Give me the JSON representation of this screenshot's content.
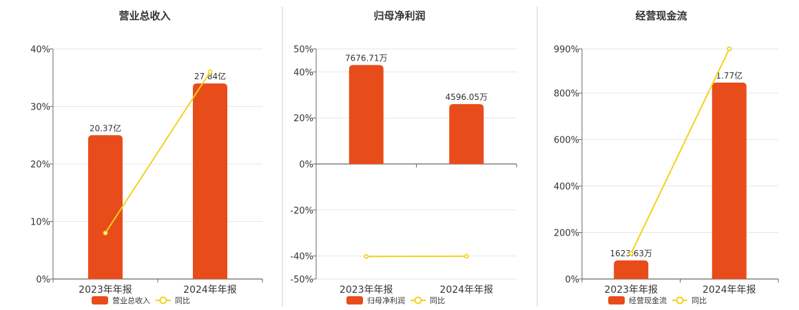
{
  "colors": {
    "bar": "#e84c1a",
    "line": "#f2d21c",
    "grid": "#e6e6e6",
    "axis": "#666666",
    "divider": "#cccccc"
  },
  "chart_data": [
    {
      "type": "bar",
      "title": "营业总收入",
      "categories": [
        "2023年年报",
        "2024年年报"
      ],
      "series": [
        {
          "name": "营业总收入",
          "type": "bar",
          "values": [
            25,
            34
          ],
          "labels": [
            "20.37亿",
            "27.84亿"
          ]
        },
        {
          "name": "同比",
          "type": "line",
          "values": [
            8,
            36
          ]
        }
      ],
      "ylim": [
        0,
        40
      ],
      "yticks": [
        0,
        10,
        20,
        30,
        40
      ],
      "ytick_labels": [
        "0%",
        "10%",
        "20%",
        "30%",
        "40%"
      ],
      "grid": true,
      "legend": "bottom"
    },
    {
      "type": "bar",
      "title": "归母净利润",
      "categories": [
        "2023年年报",
        "2024年年报"
      ],
      "series": [
        {
          "name": "归母净利润",
          "type": "bar",
          "values": [
            43,
            26
          ],
          "labels": [
            "7676.71万",
            "4596.05万"
          ]
        },
        {
          "name": "同比",
          "type": "line",
          "values": [
            -40.2,
            -40.1
          ]
        }
      ],
      "ylim": [
        -50,
        50
      ],
      "yticks": [
        -50,
        -40,
        -20,
        0,
        20,
        40,
        50
      ],
      "ytick_labels": [
        "-50%",
        "-40%",
        "-20%",
        "0%",
        "20%",
        "40%",
        "50%"
      ],
      "grid": true,
      "legend": "bottom"
    },
    {
      "type": "bar",
      "title": "经营现金流",
      "categories": [
        "2023年年报",
        "2024年年报"
      ],
      "series": [
        {
          "name": "经营现金流",
          "type": "bar",
          "values": [
            80,
            845
          ],
          "labels": [
            "1623.63万",
            "1.77亿"
          ]
        },
        {
          "name": "同比",
          "type": "line",
          "values": [
            110,
            990
          ]
        }
      ],
      "ylim": [
        0,
        990
      ],
      "yticks": [
        0,
        200,
        400,
        600,
        800,
        990
      ],
      "ytick_labels": [
        "0%",
        "200%",
        "400%",
        "600%",
        "800%",
        "990%"
      ],
      "grid": true,
      "legend": "bottom"
    }
  ]
}
